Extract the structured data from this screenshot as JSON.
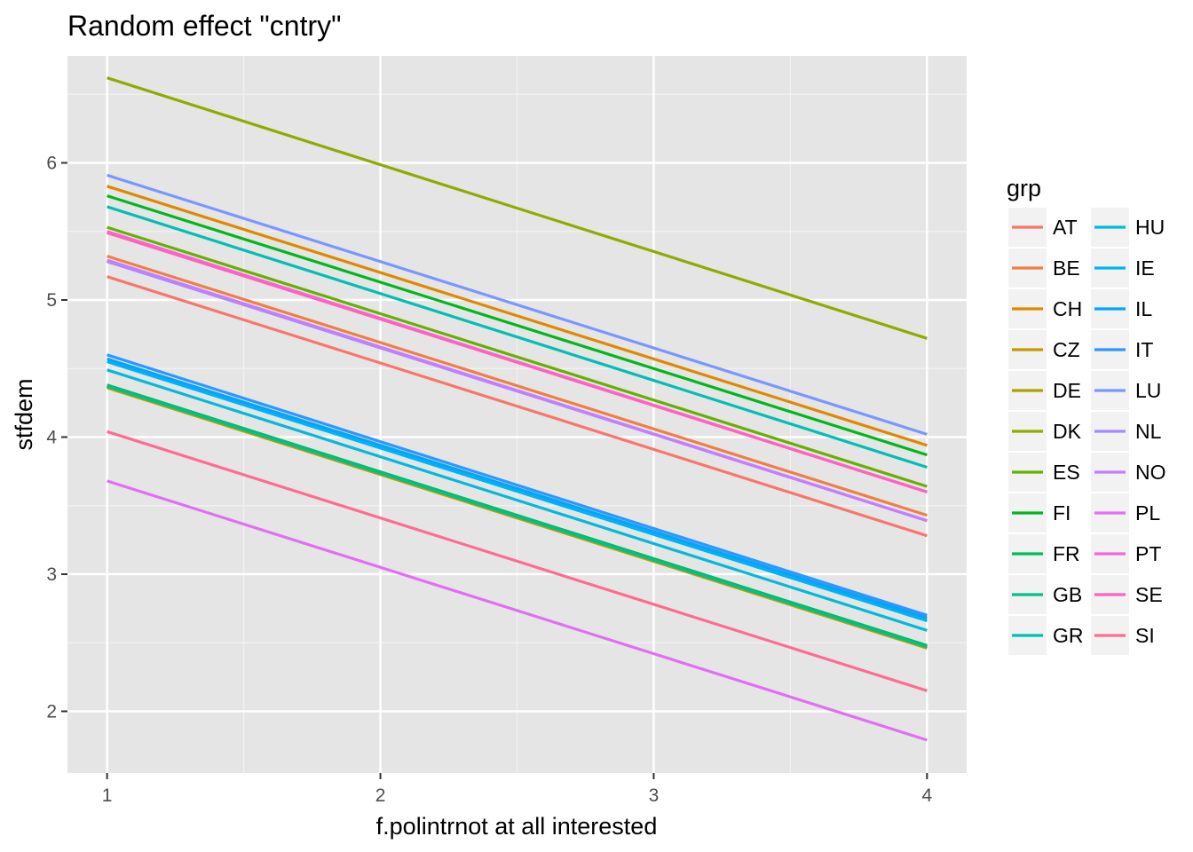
{
  "chart_data": {
    "type": "line",
    "title": "Random effect \"cntry\"",
    "xlabel": "f.polintrnot at all interested",
    "ylabel": "stfdem",
    "xlim": [
      0.855,
      4.145
    ],
    "ylim": [
      1.55,
      6.78
    ],
    "x_ticks": [
      1,
      2,
      3,
      4
    ],
    "y_ticks": [
      2,
      3,
      4,
      5,
      6
    ],
    "grid": true,
    "legend_title": "grp",
    "legend_position": "right",
    "series": [
      {
        "name": "AT",
        "color": "#F8766D",
        "x": [
          1,
          4
        ],
        "y": [
          5.17,
          3.28
        ]
      },
      {
        "name": "BE",
        "color": "#EE8043",
        "x": [
          1,
          4
        ],
        "y": [
          5.32,
          3.43
        ]
      },
      {
        "name": "CH",
        "color": "#DF8900",
        "x": [
          1,
          4
        ],
        "y": [
          5.83,
          3.94
        ]
      },
      {
        "name": "CZ",
        "color": "#C99800",
        "x": [
          1,
          4
        ],
        "y": [
          4.36,
          2.46
        ]
      },
      {
        "name": "DE",
        "color": "#AFA100",
        "x": [
          1,
          4
        ],
        "y": [
          4.37,
          2.47
        ]
      },
      {
        "name": "DK",
        "color": "#8EAB00",
        "x": [
          1,
          4
        ],
        "y": [
          6.62,
          4.72
        ]
      },
      {
        "name": "ES",
        "color": "#64B200",
        "x": [
          1,
          4
        ],
        "y": [
          5.53,
          3.64
        ]
      },
      {
        "name": "FI",
        "color": "#00B81B",
        "x": [
          1,
          4
        ],
        "y": [
          5.76,
          3.87
        ]
      },
      {
        "name": "FR",
        "color": "#00BD5C",
        "x": [
          1,
          4
        ],
        "y": [
          4.38,
          2.48
        ]
      },
      {
        "name": "GB",
        "color": "#00C08B",
        "x": [
          1,
          4
        ],
        "y": [
          4.37,
          2.47
        ]
      },
      {
        "name": "GR",
        "color": "#00BFB3",
        "x": [
          1,
          4
        ],
        "y": [
          5.68,
          3.78
        ]
      },
      {
        "name": "HU",
        "color": "#00BBDB",
        "x": [
          1,
          4
        ],
        "y": [
          4.49,
          2.59
        ]
      },
      {
        "name": "IE",
        "color": "#00B4EF",
        "x": [
          1,
          4
        ],
        "y": [
          4.55,
          2.66
        ]
      },
      {
        "name": "IL",
        "color": "#00A5FF",
        "x": [
          1,
          4
        ],
        "y": [
          4.57,
          2.68
        ]
      },
      {
        "name": "IT",
        "color": "#2E96FF",
        "x": [
          1,
          4
        ],
        "y": [
          4.6,
          2.7
        ]
      },
      {
        "name": "LU",
        "color": "#7997FF",
        "x": [
          1,
          4
        ],
        "y": [
          5.91,
          4.02
        ]
      },
      {
        "name": "NL",
        "color": "#A58AFF",
        "x": [
          1,
          4
        ],
        "y": [
          5.28,
          3.39
        ]
      },
      {
        "name": "NO",
        "color": "#C77CFF",
        "x": [
          1,
          4
        ],
        "y": [
          5.29,
          3.39
        ]
      },
      {
        "name": "PL",
        "color": "#E36EF6",
        "x": [
          1,
          4
        ],
        "y": [
          3.68,
          1.79
        ]
      },
      {
        "name": "PT",
        "color": "#F564E3",
        "x": [
          1,
          4
        ],
        "y": [
          5.5,
          3.6
        ]
      },
      {
        "name": "SE",
        "color": "#FF61C3",
        "x": [
          1,
          4
        ],
        "y": [
          5.49,
          3.6
        ]
      },
      {
        "name": "SI",
        "color": "#FF6C91",
        "x": [
          1,
          4
        ],
        "y": [
          4.04,
          2.15
        ]
      }
    ]
  }
}
